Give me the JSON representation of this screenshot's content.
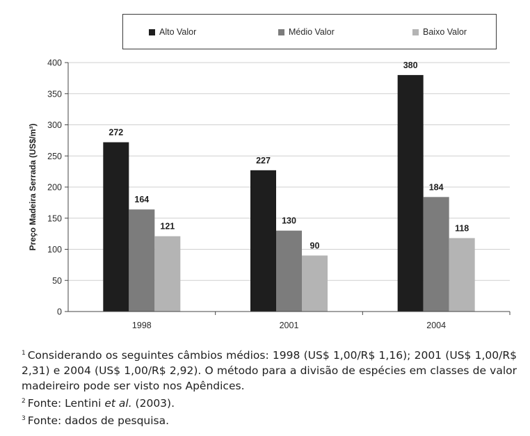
{
  "chart_data": {
    "type": "bar",
    "categories": [
      "1998",
      "2001",
      "2004"
    ],
    "series": [
      {
        "name": "Alto Valor",
        "color": "#1e1e1e",
        "values": [
          272,
          227,
          380
        ]
      },
      {
        "name": "Médio Valor",
        "color": "#7c7c7c",
        "values": [
          164,
          130,
          184
        ]
      },
      {
        "name": "Baixo Valor",
        "color": "#b4b4b4",
        "values": [
          121,
          90,
          118
        ]
      }
    ],
    "ylabel": "Preço Madeira Serrada (US$/m³)",
    "ylim": [
      0,
      400
    ],
    "yticks": [
      0,
      50,
      100,
      150,
      200,
      250,
      300,
      350,
      400
    ],
    "grid": true,
    "legend_placement": "top"
  },
  "notes": {
    "note1": {
      "marker": "1",
      "text": "Considerando os seguintes câmbios médios: 1998 (US$ 1,00/R$ 1,16); 2001 (US$ 1,00/R$ 2,31) e 2004 (US$ 1,00/R$ 2,92). O método para a divisão de espécies em classes de valor madeireiro pode ser visto nos Apêndices."
    },
    "note2": {
      "marker": "2",
      "prefix": "Fonte: Lentini ",
      "emphasis": "et al.",
      "suffix": " (2003)."
    },
    "note3": {
      "marker": "3",
      "text": "Fonte: dados de pesquisa."
    }
  }
}
